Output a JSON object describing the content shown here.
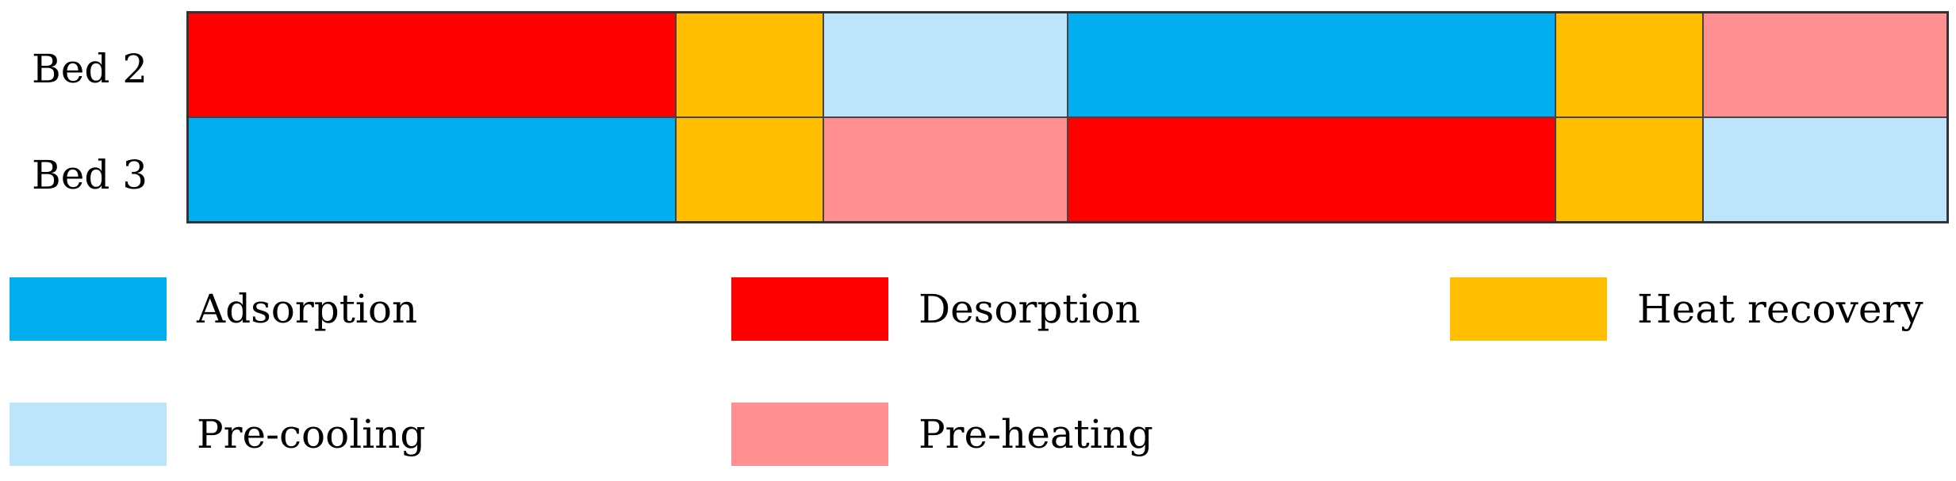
{
  "phases": {
    "adsorption": {
      "label": "Adsorption",
      "color": "#02AEEF"
    },
    "desorption": {
      "label": "Desorption",
      "color": "#FF0000"
    },
    "heat_recovery": {
      "label": "Heat recovery",
      "color": "#FFBE00"
    },
    "pre_cooling": {
      "label": "Pre-cooling",
      "color": "#BCE5FB"
    },
    "pre_heating": {
      "label": "Pre-heating",
      "color": "#FF8F91"
    }
  },
  "rows": [
    {
      "label": "Bed 2",
      "segments": [
        {
          "phase": "desorption",
          "duration": 10
        },
        {
          "phase": "heat_recovery",
          "duration": 3
        },
        {
          "phase": "pre_cooling",
          "duration": 5
        },
        {
          "phase": "adsorption",
          "duration": 10
        },
        {
          "phase": "heat_recovery",
          "duration": 3
        },
        {
          "phase": "pre_heating",
          "duration": 5
        }
      ]
    },
    {
      "label": "Bed 3",
      "segments": [
        {
          "phase": "adsorption",
          "duration": 10
        },
        {
          "phase": "heat_recovery",
          "duration": 3
        },
        {
          "phase": "pre_heating",
          "duration": 5
        },
        {
          "phase": "desorption",
          "duration": 10
        },
        {
          "phase": "heat_recovery",
          "duration": 3
        },
        {
          "phase": "pre_cooling",
          "duration": 5
        }
      ]
    }
  ],
  "legend": [
    {
      "phase": "adsorption",
      "label": "Adsorption"
    },
    {
      "phase": "desorption",
      "label": "Desorption"
    },
    {
      "phase": "heat_recovery",
      "label": "Heat recovery"
    },
    {
      "phase": "pre_cooling",
      "label": "Pre-cooling"
    },
    {
      "phase": "pre_heating",
      "label": "Pre-heating"
    }
  ]
}
